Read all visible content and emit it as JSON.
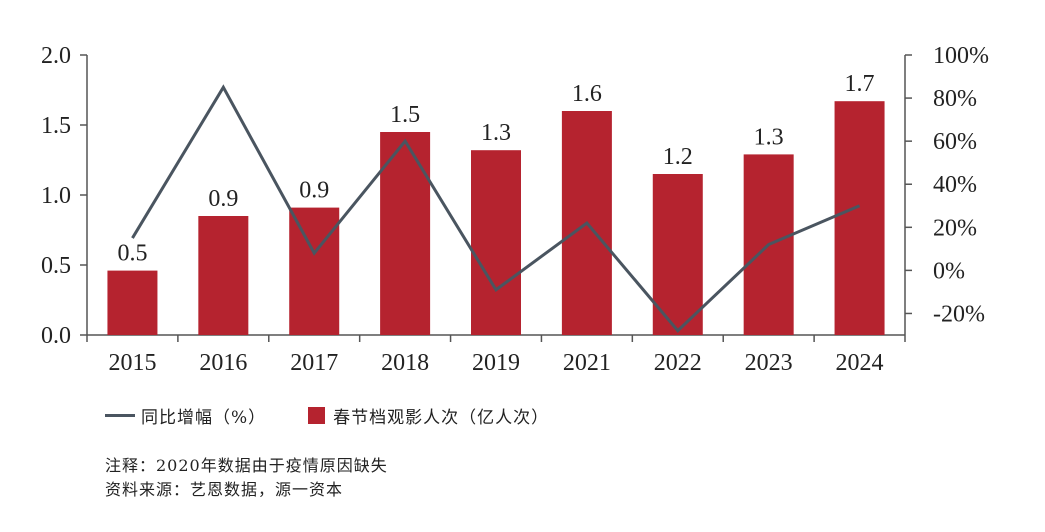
{
  "chart_data": {
    "type": "bar",
    "categories": [
      "2015",
      "2016",
      "2017",
      "2018",
      "2019",
      "2021",
      "2022",
      "2023",
      "2024"
    ],
    "series": [
      {
        "name": "春节档观影人次（亿人次）",
        "type": "bar",
        "axis": "left",
        "color": "#b5232f",
        "values": [
          0.46,
          0.85,
          0.91,
          1.45,
          1.32,
          1.6,
          1.15,
          1.29,
          1.67
        ],
        "labels": [
          "0.5",
          "0.9",
          "0.9",
          "1.5",
          "1.3",
          "1.6",
          "1.2",
          "1.3",
          "1.7"
        ]
      },
      {
        "name": "同比增幅（%）",
        "type": "line",
        "axis": "right",
        "color": "#4a5560",
        "values": [
          15,
          85,
          8,
          60,
          -9,
          22,
          -28,
          12,
          30
        ]
      }
    ],
    "left_axis": {
      "ylim": [
        0,
        2.0
      ],
      "ticks": [
        "0.0",
        "0.5",
        "1.0",
        "1.5",
        "2.0"
      ],
      "tick_values": [
        0,
        0.5,
        1.0,
        1.5,
        2.0
      ]
    },
    "right_axis": {
      "ylim": [
        -30,
        100
      ],
      "ticks": [
        "-20%",
        "0%",
        "20%",
        "40%",
        "60%",
        "80%",
        "100%"
      ],
      "tick_values": [
        -20,
        0,
        20,
        40,
        60,
        80,
        100
      ]
    },
    "legend_position": "bottom-left"
  },
  "notes": {
    "note": "注释：2020年数据由于疫情原因缺失",
    "source": "资料来源：艺恩数据，源一资本"
  }
}
